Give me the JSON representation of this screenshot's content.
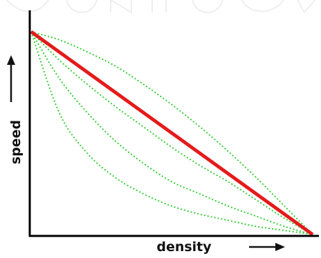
{
  "chart_data": {
    "type": "line",
    "title": "",
    "xlabel": "density",
    "ylabel": "speed",
    "grid": false,
    "legend": "none",
    "xlim": [
      0,
      1
    ],
    "ylim": [
      0,
      1
    ],
    "series": [
      {
        "color": "#e41b1b",
        "style": "solid",
        "x": [
          0,
          1
        ],
        "y": [
          1,
          0
        ]
      },
      {
        "color": "#33cc33",
        "style": "dotted",
        "x": [
          0,
          0.1,
          0.2,
          0.3,
          0.4,
          0.5,
          0.6,
          0.7,
          0.8,
          0.9,
          1
        ],
        "y": [
          1,
          0.96,
          0.9,
          0.83,
          0.74,
          0.64,
          0.53,
          0.41,
          0.28,
          0.14,
          0
        ]
      },
      {
        "color": "#33cc33",
        "style": "dotted",
        "x": [
          0,
          0.1,
          0.2,
          0.3,
          0.4,
          0.5,
          0.6,
          0.7,
          0.8,
          0.9,
          1
        ],
        "y": [
          1,
          0.86,
          0.74,
          0.63,
          0.53,
          0.43,
          0.34,
          0.26,
          0.17,
          0.08,
          0
        ]
      },
      {
        "color": "#33cc33",
        "style": "dotted",
        "x": [
          0,
          0.1,
          0.2,
          0.3,
          0.4,
          0.5,
          0.6,
          0.7,
          0.8,
          0.9,
          1
        ],
        "y": [
          1,
          0.77,
          0.6,
          0.46,
          0.35,
          0.26,
          0.2,
          0.14,
          0.09,
          0.04,
          0
        ]
      },
      {
        "color": "#33cc33",
        "style": "dotted",
        "x": [
          0,
          0.1,
          0.2,
          0.3,
          0.4,
          0.5,
          0.6,
          0.7,
          0.8,
          0.9,
          1
        ],
        "y": [
          1,
          0.6,
          0.4,
          0.28,
          0.2,
          0.14,
          0.1,
          0.07,
          0.04,
          0.02,
          0
        ]
      }
    ]
  },
  "colors": {
    "axis": "#000000",
    "background": "#ffffff"
  }
}
